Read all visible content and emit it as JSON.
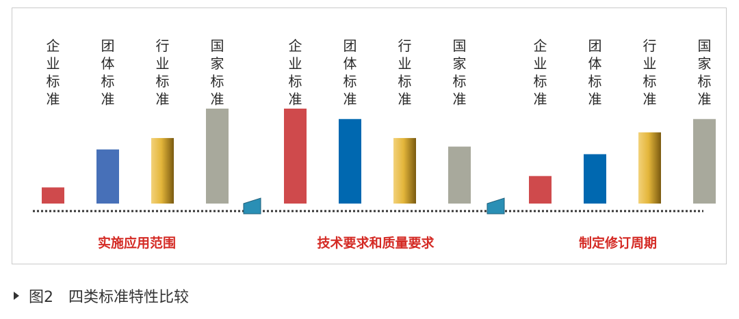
{
  "caption": {
    "figure_number": "图2",
    "text": "四类标准特性比较"
  },
  "colors": {
    "enterprise": "#cf4a4c",
    "group_blue_1": "#4770b8",
    "group_blue_2": "#0068b0",
    "industry_gold": "#e6b737",
    "national_gray": "#a8a99c",
    "connector": "#2a8fb5",
    "group_label": "#d42a24"
  },
  "chart_data": {
    "type": "bar",
    "title": "",
    "xlabel": "",
    "ylabel": "",
    "categories": [
      "企业标准",
      "团体标准",
      "行业标准",
      "国家标准"
    ],
    "groups": [
      {
        "name": "实施应用范围",
        "values": [
          1.7,
          5.7,
          6.9,
          10.0
        ]
      },
      {
        "name": "技术要求和质量要求",
        "values": [
          10.0,
          8.9,
          6.9,
          6.0
        ]
      },
      {
        "name": "制定修订周期",
        "values": [
          2.9,
          5.2,
          7.5,
          8.9
        ]
      }
    ],
    "ylim": [
      0,
      10
    ],
    "grid": false,
    "legend": "none"
  }
}
